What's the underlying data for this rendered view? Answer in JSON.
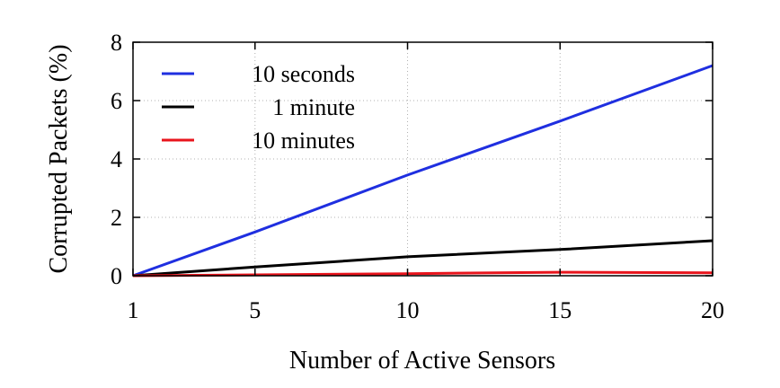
{
  "chart_data": {
    "type": "line",
    "title": "",
    "xlabel": "Number of Active Sensors",
    "ylabel": "Corrupted Packets (%)",
    "xlim": [
      1,
      20
    ],
    "ylim": [
      0,
      8
    ],
    "xticks": [
      1,
      5,
      10,
      15,
      20
    ],
    "yticks": [
      0,
      2,
      4,
      6,
      8
    ],
    "grid": true,
    "legend_position": "top-left",
    "series": [
      {
        "name": "10 seconds",
        "color": "#1f2fe0",
        "x": [
          1,
          5,
          10,
          15,
          20
        ],
        "y": [
          0,
          1.5,
          3.45,
          5.3,
          7.2
        ]
      },
      {
        "name": "1 minute",
        "color": "#000000",
        "x": [
          1,
          5,
          10,
          15,
          20
        ],
        "y": [
          0,
          0.3,
          0.65,
          0.9,
          1.2
        ]
      },
      {
        "name": "10 minutes",
        "color": "#e8141c",
        "x": [
          1,
          5,
          10,
          15,
          20
        ],
        "y": [
          0,
          0.03,
          0.07,
          0.12,
          0.1
        ]
      }
    ]
  }
}
